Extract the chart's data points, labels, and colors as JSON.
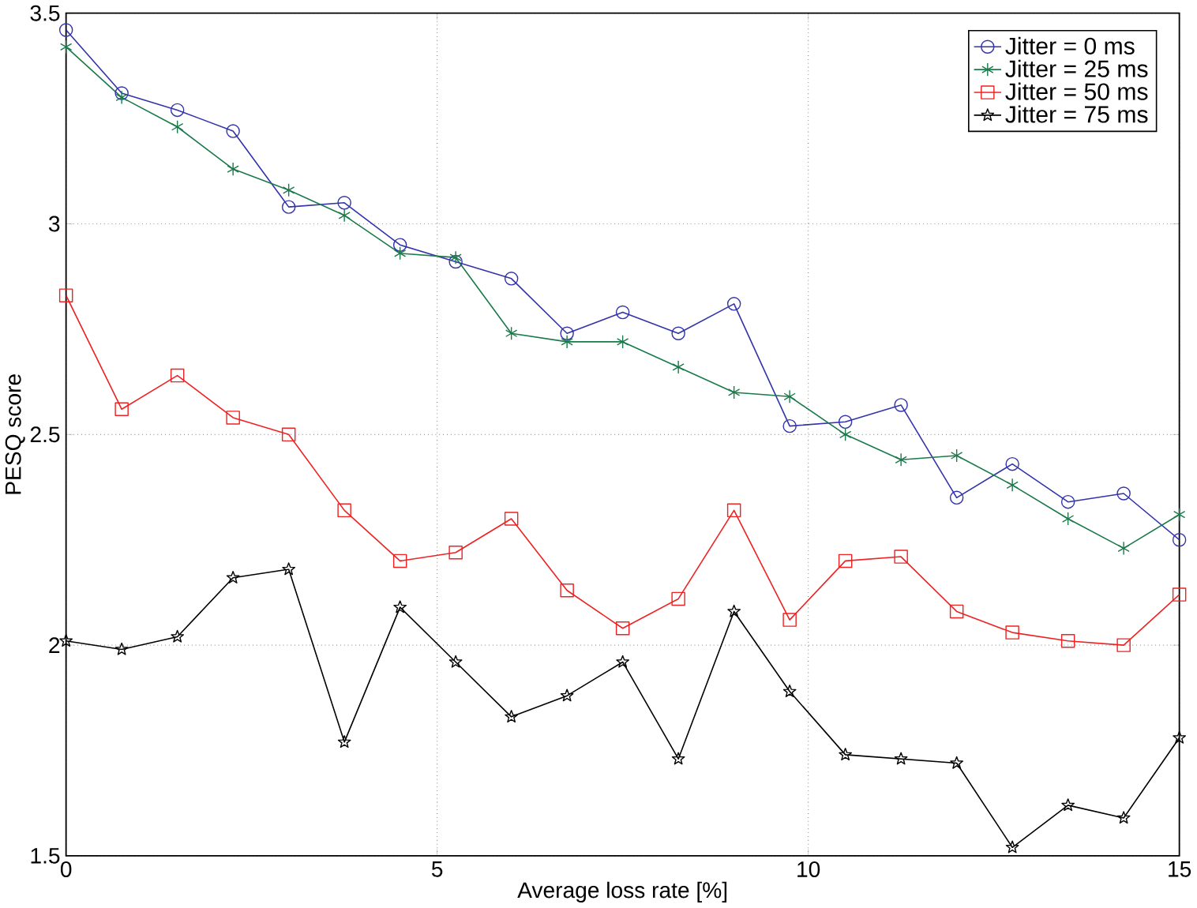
{
  "chart_data": {
    "type": "line",
    "xlabel": "Average loss rate [%]",
    "ylabel": "PESQ score",
    "x": [
      0,
      0.75,
      1.5,
      2.25,
      3,
      3.75,
      4.5,
      5.25,
      6,
      6.75,
      7.5,
      8.25,
      9,
      9.75,
      10.5,
      11.25,
      12,
      12.75,
      13.5,
      14.25,
      15
    ],
    "series": [
      {
        "name": "Jitter =   0 ms",
        "color": "#3333aa",
        "marker": "circle",
        "values": [
          3.46,
          3.31,
          3.27,
          3.22,
          3.04,
          3.05,
          2.95,
          2.91,
          2.87,
          2.74,
          2.79,
          2.74,
          2.81,
          2.52,
          2.53,
          2.57,
          2.35,
          2.43,
          2.34,
          2.36,
          2.25
        ]
      },
      {
        "name": "Jitter = 25 ms",
        "color": "#1a7a4a",
        "marker": "cross",
        "values": [
          3.42,
          3.3,
          3.23,
          3.13,
          3.08,
          3.02,
          2.93,
          2.92,
          2.74,
          2.72,
          2.72,
          2.66,
          2.6,
          2.59,
          2.5,
          2.44,
          2.45,
          2.38,
          2.3,
          2.23,
          2.31
        ]
      },
      {
        "name": "Jitter = 50 ms",
        "color": "#ee2222",
        "marker": "square",
        "values": [
          2.83,
          2.56,
          2.64,
          2.54,
          2.5,
          2.32,
          2.2,
          2.22,
          2.3,
          2.13,
          2.04,
          2.11,
          2.32,
          2.06,
          2.2,
          2.21,
          2.08,
          2.03,
          2.01,
          2.0,
          2.12
        ]
      },
      {
        "name": "Jitter = 75 ms",
        "color": "#000000",
        "marker": "star",
        "values": [
          2.01,
          1.99,
          2.02,
          2.16,
          2.18,
          1.77,
          2.09,
          1.96,
          1.83,
          1.88,
          1.96,
          1.73,
          2.08,
          1.89,
          1.74,
          1.73,
          1.72,
          1.52,
          1.62,
          1.59,
          1.78
        ]
      }
    ],
    "xlim": [
      0,
      15
    ],
    "ylim": [
      1.5,
      3.5
    ],
    "xticks": [
      0,
      5,
      10,
      15
    ],
    "yticks": [
      1.5,
      2,
      2.5,
      3,
      3.5
    ],
    "grid": true,
    "legend": "top right",
    "line_style": "solid"
  }
}
